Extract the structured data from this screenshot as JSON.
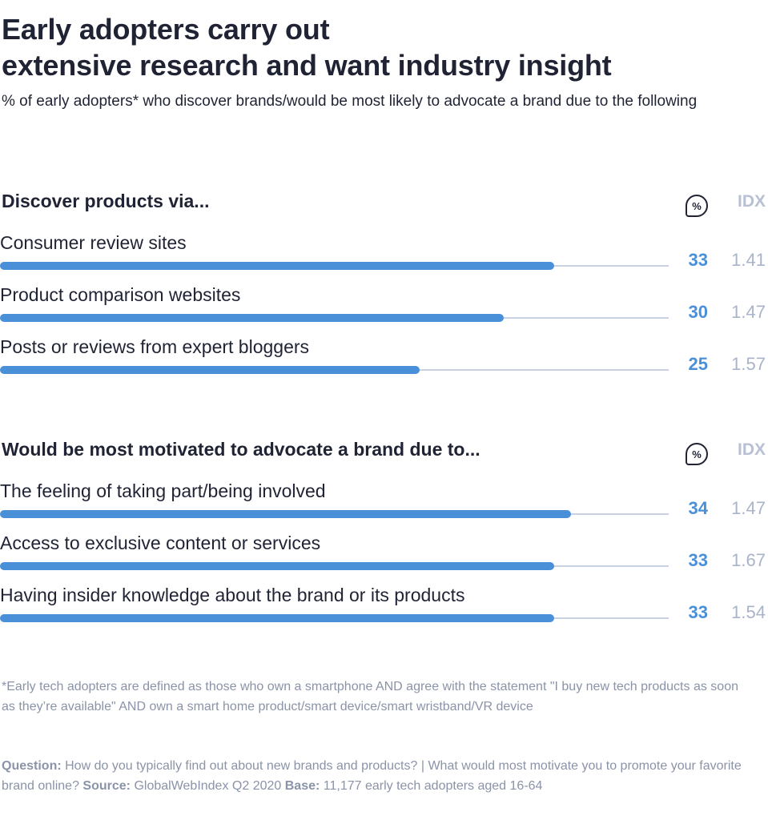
{
  "title_line1": "Early adopters carry out",
  "title_line2": "extensive research and want industry insight",
  "subtitle": "% of early adopters* who discover brands/would be most likely to advocate a brand due to the following",
  "colors": {
    "bar": "#4a90d9",
    "track": "#c9d2e3",
    "value": "#4a90d9",
    "idx": "#a9b3c9",
    "text": "#1f2334"
  },
  "pct_icon": "percent-speech-bubble-icon",
  "chart_data": [
    {
      "type": "bar",
      "orientation": "horizontal",
      "title": "Discover products via...",
      "value_header_icon": "%",
      "idx_header": "IDX",
      "scale_max": 40,
      "categories": [
        "Consumer review sites",
        "Product comparison websites",
        "Posts or reviews from expert bloggers"
      ],
      "values": [
        33,
        30,
        25
      ],
      "idx": [
        "1.41",
        "1.47",
        "1.57"
      ]
    },
    {
      "type": "bar",
      "orientation": "horizontal",
      "title": "Would be most motivated to advocate a brand due to...",
      "value_header_icon": "%",
      "idx_header": "IDX",
      "scale_max": 40,
      "categories": [
        "The feeling of taking part/being involved",
        "Access to exclusive content or services",
        "Having insider knowledge about the brand or its products"
      ],
      "values": [
        34,
        33,
        33
      ],
      "idx": [
        "1.47",
        "1.67",
        "1.54"
      ]
    }
  ],
  "footnote": "*Early tech adopters are defined as those who own a smartphone AND agree with the statement \"I buy new tech products as soon as they’re available\" AND own a smart home product/smart device/smart wristband/VR device",
  "source": {
    "question_label": "Question:",
    "question_text": "How do you typically find out about new brands and products? | What would most motivate you to promote your favorite brand online?",
    "source_label": "Source:",
    "source_text": "GlobalWebIndex Q2 2020",
    "base_label": "Base:",
    "base_text": "11,177 early tech adopters aged 16-64"
  }
}
